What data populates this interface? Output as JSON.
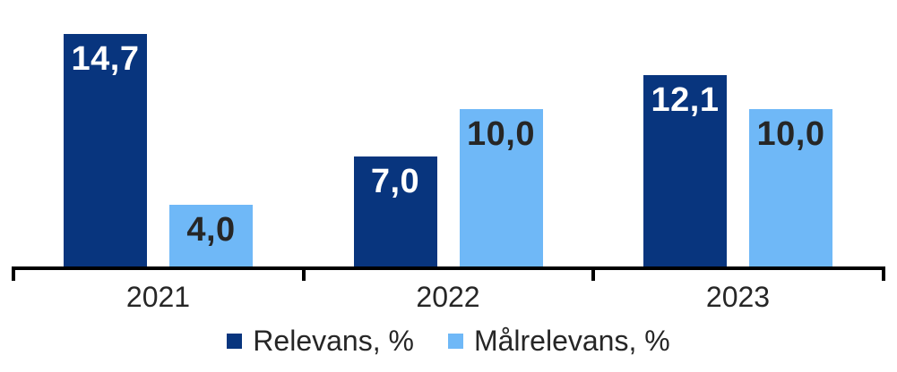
{
  "chart_data": {
    "type": "bar",
    "title": "",
    "xlabel": "",
    "ylabel": "",
    "categories": [
      "2021",
      "2022",
      "2023"
    ],
    "series": [
      {
        "name": "Relevans, %",
        "color": "#08357E",
        "values": [
          14.7,
          7.0,
          12.1
        ],
        "labels": [
          "14,7",
          "7,0",
          "12,1"
        ],
        "label_color": "#FFFFFF"
      },
      {
        "name": "Målrelevans, %",
        "color": "#6FB8F7",
        "values": [
          4.0,
          10.0,
          10.0
        ],
        "labels": [
          "4,0",
          "10,0",
          "10,0"
        ],
        "label_color": "#262626"
      }
    ],
    "ylim": [
      0,
      16.8
    ],
    "grid": false,
    "axis_color": "#000000",
    "category_label_color": "#262626",
    "legend_position": "bottom",
    "data_labels": "inside-top",
    "decimal_separator": ","
  }
}
